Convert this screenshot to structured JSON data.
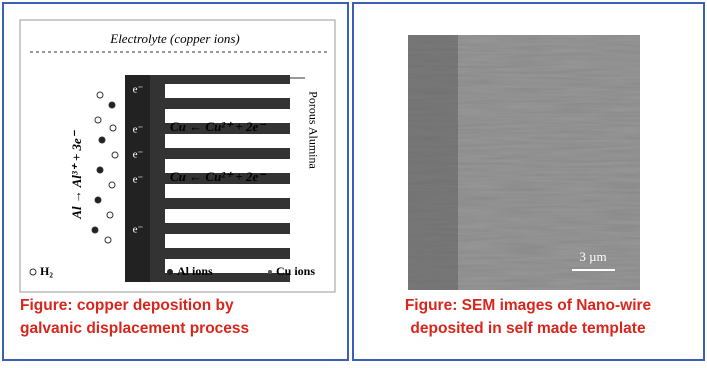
{
  "left_panel": {
    "diagram": {
      "electrolyte_label": "Electrolyte (copper ions)",
      "alumina_label": "Porous Alumina",
      "anode_reaction": "Al → Al³⁺ + 3e⁻",
      "cathode_reaction": "Cu ← Cu²⁺ + 2e⁻",
      "electron_label": "e⁻",
      "legend": {
        "h2": "H₂",
        "al_ions": "Al ions",
        "cu_ions": "Cu ions"
      }
    },
    "caption": [
      "Figure: copper deposition by",
      "galvanic displacement process"
    ]
  },
  "right_panel": {
    "scale_bar_label": "3 µm",
    "caption": [
      "Figure: SEM images of Nano-wire",
      "deposited in self made template"
    ]
  }
}
